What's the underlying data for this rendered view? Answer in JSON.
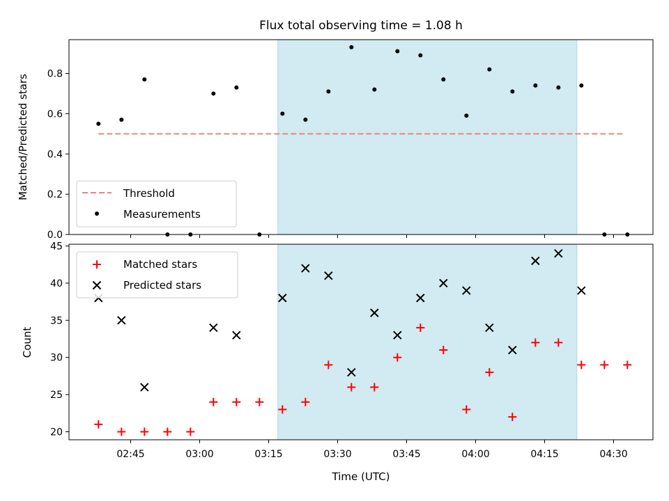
{
  "chart_data": [
    {
      "type": "scatter",
      "title": "Flux total observing time = 1.08 h",
      "xlabel": "",
      "ylabel": "Matched/Predicted stars",
      "ylim": [
        0,
        0.97
      ],
      "yticks": [
        "0.0",
        "0.2",
        "0.4",
        "0.6",
        "0.8"
      ],
      "shaded_interval": [
        "03:17",
        "04:22"
      ],
      "threshold": {
        "name": "Threshold",
        "value": 0.5,
        "x_range": [
          "02:38",
          "04:32"
        ],
        "color": "#f08080"
      },
      "series": [
        {
          "name": "Measurements",
          "color": "#000000",
          "x": [
            "02:38",
            "02:43",
            "02:48",
            "02:53",
            "02:58",
            "03:03",
            "03:08",
            "03:13",
            "03:18",
            "03:23",
            "03:28",
            "03:33",
            "03:38",
            "03:43",
            "03:48",
            "03:53",
            "03:58",
            "04:03",
            "04:08",
            "04:13",
            "04:18",
            "04:23",
            "04:28",
            "04:33"
          ],
          "y": [
            0.55,
            0.57,
            0.77,
            0.0,
            0.0,
            0.7,
            0.73,
            0.0,
            0.6,
            0.57,
            0.71,
            0.93,
            0.72,
            0.91,
            0.89,
            0.77,
            0.59,
            0.82,
            0.71,
            0.74,
            0.73,
            0.74,
            0.0,
            0.0
          ]
        }
      ],
      "legend": {
        "position": "lower-left",
        "entries": [
          "Threshold",
          "Measurements"
        ]
      }
    },
    {
      "type": "scatter",
      "title": "",
      "xlabel": "Time (UTC)",
      "ylabel": "Count",
      "ylim": [
        19,
        45
      ],
      "yticks": [
        "20",
        "25",
        "30",
        "35",
        "40",
        "45"
      ],
      "xticks": [
        "02:45",
        "03:00",
        "03:15",
        "03:30",
        "03:45",
        "04:00",
        "04:15",
        "04:30"
      ],
      "shaded_interval": [
        "03:17",
        "04:22"
      ],
      "series": [
        {
          "name": "Matched stars",
          "marker": "plus",
          "color": "#ff0000",
          "x": [
            "02:38",
            "02:43",
            "02:48",
            "02:53",
            "02:58",
            "03:03",
            "03:08",
            "03:13",
            "03:18",
            "03:23",
            "03:28",
            "03:33",
            "03:38",
            "03:43",
            "03:48",
            "03:53",
            "03:58",
            "04:03",
            "04:08",
            "04:13",
            "04:18",
            "04:23",
            "04:28",
            "04:33"
          ],
          "y": [
            21,
            20,
            20,
            20,
            20,
            24,
            24,
            24,
            23,
            24,
            29,
            26,
            26,
            30,
            34,
            31,
            23,
            28,
            22,
            32,
            32,
            29,
            29,
            29
          ]
        },
        {
          "name": "Predicted stars",
          "marker": "x",
          "color": "#000000",
          "x": [
            "02:38",
            "02:43",
            "02:48",
            "03:03",
            "03:08",
            "03:18",
            "03:23",
            "03:28",
            "03:33",
            "03:38",
            "03:43",
            "03:48",
            "03:53",
            "03:58",
            "04:03",
            "04:08",
            "04:13",
            "04:18",
            "04:23"
          ],
          "y": [
            38,
            35,
            26,
            34,
            33,
            38,
            42,
            41,
            28,
            36,
            33,
            38,
            40,
            39,
            34,
            31,
            43,
            44,
            39
          ]
        }
      ],
      "legend": {
        "position": "upper-left",
        "entries": [
          "Matched stars",
          "Predicted stars"
        ]
      }
    }
  ],
  "colors": {
    "shade": "#add8e6",
    "threshold": "#f08080",
    "matched": "#ff0000",
    "predicted": "#000000"
  }
}
